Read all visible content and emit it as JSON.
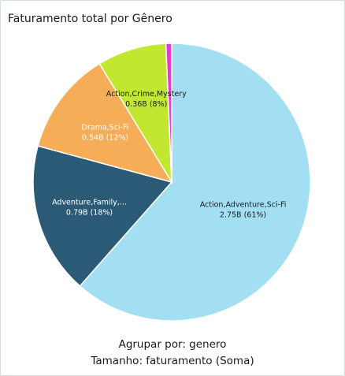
{
  "title": "Faturamento total por Gênero",
  "chart_data": {
    "type": "pie",
    "title": "Faturamento total por Gênero",
    "slices": [
      {
        "label": "Action,Adventure,Sci-Fi",
        "value_label": "2.75B (61%)",
        "value": 2.75,
        "percent": 61,
        "color": "#a3dff2",
        "text_color": "#16191f"
      },
      {
        "label": "Adventure,Family,...",
        "value_label": "0.79B (18%)",
        "value": 0.79,
        "percent": 18,
        "color": "#2b5a76",
        "text_color": "#ffffff"
      },
      {
        "label": "Drama,Sci-Fi",
        "value_label": "0.54B (12%)",
        "value": 0.54,
        "percent": 12,
        "color": "#f5ad58",
        "text_color": "#ffffff"
      },
      {
        "label": "Action,Crime,Mystery",
        "value_label": "0.36B (8%)",
        "value": 0.36,
        "percent": 8,
        "color": "#c2e731",
        "text_color": "#16191f"
      },
      {
        "label": "",
        "value_label": "",
        "value": 0.03,
        "percent": 1,
        "color": "#e23bd0",
        "text_color": "#16191f"
      }
    ],
    "grid": false,
    "legend": "none"
  },
  "footer": {
    "group_by": "Agrupar por: genero",
    "size": "Tamanho: faturamento (Soma)"
  }
}
